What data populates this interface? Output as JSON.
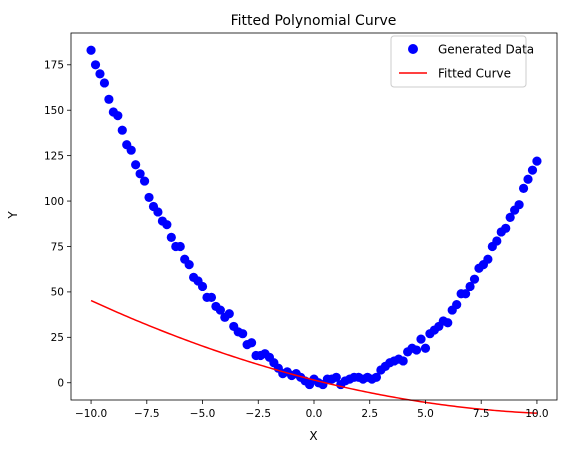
{
  "chart_data": {
    "type": "scatter",
    "title": "Fitted Polynomial Curve",
    "xlabel": "X",
    "ylabel": "Y",
    "xlim": [
      -10.9,
      10.9
    ],
    "ylim": [
      -9.5,
      192.5
    ],
    "xticks": [
      -10.0,
      -7.5,
      -5.0,
      -2.5,
      0.0,
      2.5,
      5.0,
      7.5,
      10.0
    ],
    "xtick_labels": [
      "−10.0",
      "−7.5",
      "−5.0",
      "−2.5",
      "0.0",
      "2.5",
      "5.0",
      "7.5",
      "10.0"
    ],
    "yticks": [
      0,
      25,
      50,
      75,
      100,
      125,
      150,
      175
    ],
    "ytick_labels": [
      "0",
      "25",
      "50",
      "75",
      "100",
      "125",
      "150",
      "175"
    ],
    "grid": false,
    "legend_position": "top-right",
    "series": [
      {
        "name": "Generated Data",
        "kind": "scatter",
        "color": "#0000ff",
        "x": [
          -10.0,
          -9.8,
          -9.6,
          -9.4,
          -9.2,
          -9.0,
          -8.8,
          -8.6,
          -8.4,
          -8.2,
          -8.0,
          -7.8,
          -7.6,
          -7.4,
          -7.2,
          -7.0,
          -6.8,
          -6.6,
          -6.4,
          -6.2,
          -6.0,
          -5.8,
          -5.6,
          -5.4,
          -5.2,
          -5.0,
          -4.8,
          -4.6,
          -4.4,
          -4.2,
          -4.0,
          -3.8,
          -3.6,
          -3.4,
          -3.2,
          -3.0,
          -2.8,
          -2.6,
          -2.4,
          -2.2,
          -2.0,
          -1.8,
          -1.6,
          -1.4,
          -1.2,
          -1.0,
          -0.8,
          -0.6,
          -0.4,
          -0.2,
          0.0,
          0.2,
          0.4,
          0.6,
          0.8,
          1.0,
          1.2,
          1.4,
          1.6,
          1.8,
          2.0,
          2.2,
          2.4,
          2.6,
          2.8,
          3.0,
          3.2,
          3.4,
          3.6,
          3.8,
          4.0,
          4.2,
          4.4,
          4.6,
          4.8,
          5.0,
          5.2,
          5.4,
          5.6,
          5.8,
          6.0,
          6.2,
          6.4,
          6.6,
          6.8,
          7.0,
          7.2,
          7.4,
          7.6,
          7.8,
          8.0,
          8.2,
          8.4,
          8.6,
          8.8,
          9.0,
          9.2,
          9.4,
          9.6,
          9.8,
          10.0
        ],
        "y": [
          183,
          175,
          170,
          165,
          156,
          149,
          147,
          139,
          131,
          128,
          120,
          115,
          111,
          102,
          97,
          94,
          89,
          87,
          80,
          75,
          75,
          68,
          65,
          58,
          56,
          53,
          47,
          47,
          42,
          40,
          36,
          38,
          31,
          28,
          27,
          21,
          22,
          15,
          15,
          16,
          14,
          11,
          8,
          5,
          6,
          4,
          5,
          3,
          1,
          -1,
          2,
          0,
          -1,
          2,
          2,
          3,
          -1,
          1,
          2,
          3,
          3,
          2,
          3,
          2,
          3,
          7,
          9,
          11,
          12,
          13,
          12,
          17,
          19,
          18,
          24,
          19,
          27,
          29,
          31,
          34,
          33,
          40,
          43,
          49,
          49,
          53,
          57,
          63,
          65,
          68,
          75,
          78,
          83,
          85,
          91,
          95,
          98,
          107,
          112,
          117,
          122
        ]
      },
      {
        "name": "Fitted Curve",
        "kind": "line",
        "color": "#ff0000",
        "coefficients": [
          0.1275,
          -3.1,
          1.5
        ],
        "x_range": [
          -10.0,
          10.0
        ]
      }
    ]
  }
}
